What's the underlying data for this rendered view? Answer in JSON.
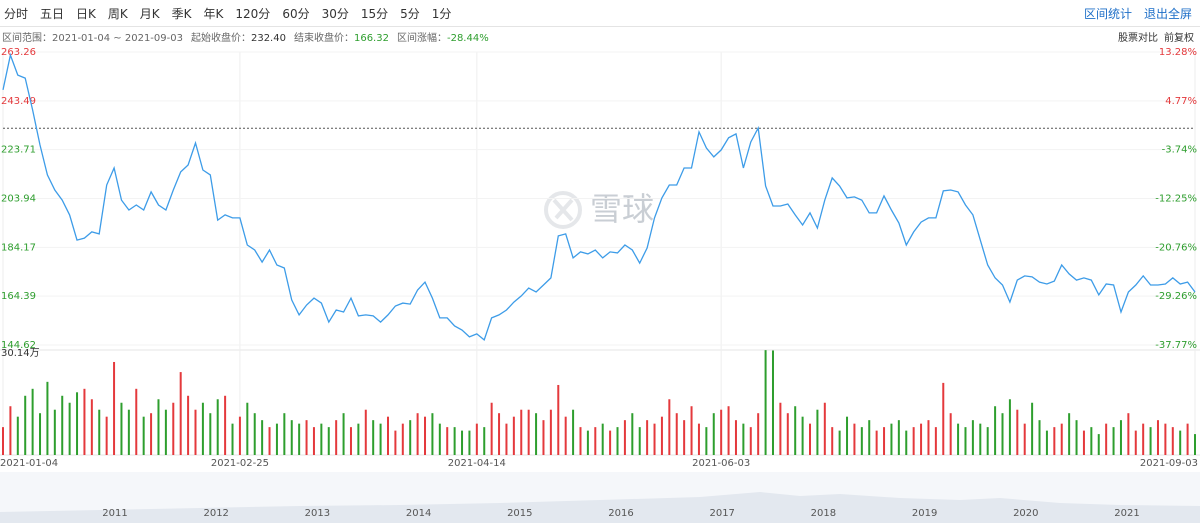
{
  "toolbar": {
    "periods": [
      "分时",
      "五日",
      "日K",
      "周K",
      "月K",
      "季K",
      "年K",
      "120分",
      "60分",
      "30分",
      "15分",
      "5分",
      "1分"
    ],
    "actions": [
      "区间统计",
      "退出全屏"
    ]
  },
  "info": {
    "range_label": "区间范围：",
    "range": "2021-01-04 ~ 2021-09-03",
    "items": [
      {
        "label": "起始收盘价：",
        "value": "232.40",
        "color": "#333333"
      },
      {
        "label": "结束收盘价：",
        "value": "166.32",
        "color": "#2e9e2e"
      },
      {
        "label": "区间涨幅：",
        "value": "-28.44%",
        "color": "#2e9e2e"
      }
    ],
    "right": [
      "股票对比",
      "前复权"
    ]
  },
  "chart_data": {
    "type": "line",
    "categories": [
      "2021-01-04",
      null,
      null,
      null,
      null,
      null,
      null,
      null,
      null,
      null,
      null,
      null,
      null,
      null,
      null,
      null,
      null,
      null,
      null,
      null,
      null,
      null,
      null,
      null,
      null,
      null,
      null,
      null,
      null,
      null,
      null,
      null,
      "2021-02-25",
      null,
      null,
      null,
      null,
      null,
      null,
      null,
      null,
      null,
      null,
      null,
      null,
      null,
      null,
      null,
      null,
      null,
      null,
      null,
      null,
      null,
      null,
      null,
      null,
      null,
      null,
      null,
      null,
      null,
      null,
      null,
      "2021-04-14",
      null,
      null,
      null,
      null,
      null,
      null,
      null,
      null,
      null,
      null,
      null,
      null,
      null,
      null,
      null,
      null,
      null,
      null,
      null,
      null,
      null,
      null,
      null,
      null,
      null,
      null,
      null,
      null,
      null,
      null,
      null,
      null,
      "2021-06-03",
      null,
      null,
      null,
      null,
      null,
      null,
      null,
      null,
      null,
      null,
      null,
      null,
      null,
      null,
      null,
      null,
      null,
      null,
      null,
      null,
      null,
      null,
      null,
      null,
      null,
      null,
      null,
      null,
      null,
      null,
      null,
      null,
      null,
      null,
      null,
      null,
      null,
      null,
      null,
      null,
      null,
      null,
      null,
      null,
      null,
      null,
      null,
      null,
      null,
      null,
      null,
      null,
      null,
      null,
      null,
      null,
      null,
      null,
      null,
      null,
      null,
      null,
      null,
      "2021-09-03"
    ],
    "values": [
      247.9,
      262.0,
      253.9,
      252.7,
      239.8,
      225.6,
      213.5,
      207.4,
      203.3,
      197.3,
      187.1,
      187.9,
      190.4,
      189.6,
      209.4,
      216.3,
      203.3,
      199.3,
      201.3,
      199.3,
      206.6,
      201.3,
      199.3,
      207.4,
      214.7,
      217.5,
      226.4,
      215.5,
      213.5,
      195.2,
      197.3,
      196.1,
      196.1,
      185.1,
      183.1,
      178.2,
      183.1,
      177.0,
      175.8,
      162.9,
      156.8,
      160.8,
      163.6,
      161.6,
      153.9,
      158.8,
      158.0,
      163.6,
      156.4,
      156.8,
      156.4,
      153.9,
      156.8,
      160.4,
      161.6,
      161.2,
      166.9,
      170.1,
      163.6,
      155.6,
      155.6,
      152.3,
      150.7,
      147.9,
      149.1,
      146.7,
      155.6,
      156.8,
      158.8,
      162.0,
      164.5,
      167.7,
      166.1,
      168.9,
      171.8,
      188.8,
      189.6,
      179.9,
      182.3,
      181.5,
      183.1,
      179.9,
      182.3,
      181.9,
      185.1,
      183.1,
      177.8,
      183.9,
      196.1,
      204.2,
      209.4,
      209.4,
      216.3,
      216.3,
      230.9,
      224.4,
      220.8,
      223.6,
      228.5,
      230.1,
      216.3,
      226.8,
      232.5,
      209.0,
      200.9,
      200.9,
      201.7,
      197.3,
      193.2,
      198.1,
      192.0,
      203.3,
      212.3,
      209.0,
      204.2,
      204.6,
      203.3,
      198.1,
      198.1,
      205.0,
      199.3,
      194.0,
      185.1,
      190.4,
      194.4,
      196.1,
      196.1,
      207.0,
      207.4,
      206.6,
      201.3,
      197.3,
      187.1,
      177.0,
      171.8,
      168.9,
      162.0,
      170.9,
      172.6,
      172.2,
      170.1,
      169.3,
      170.5,
      177.0,
      173.4,
      170.9,
      171.8,
      170.9,
      164.9,
      169.3,
      168.9,
      158.0,
      166.1,
      168.9,
      172.6,
      168.9,
      168.9,
      169.3,
      171.8,
      169.3,
      170.1,
      166.1
    ],
    "color": "#3d9ce8",
    "ylim": [
      144.62,
      263.26
    ],
    "yticks": [
      263.26,
      243.49,
      223.71,
      203.94,
      184.17,
      164.39,
      144.62
    ],
    "y2lim": [
      -37.77,
      13.28
    ],
    "y2ticks": [
      {
        "value": 13.28,
        "label": "13.28%"
      },
      {
        "value": 4.77,
        "label": "4.77%"
      },
      {
        "value": -3.74,
        "label": "-3.74%"
      },
      {
        "value": -12.25,
        "label": "-12.25%"
      },
      {
        "value": -20.76,
        "label": "-20.76%"
      },
      {
        "value": -29.26,
        "label": "-29.26%"
      },
      {
        "value": -37.77,
        "label": "-37.77%"
      }
    ],
    "reference": 232.4,
    "up_color": "#e4393c",
    "down_color": "#2e9e2e",
    "volume": {
      "values": [
        8,
        14,
        11,
        17,
        19,
        12,
        21,
        13,
        17,
        15,
        18,
        19,
        16,
        13,
        11,
        26.7,
        15,
        13,
        19,
        11,
        12,
        16,
        13,
        15,
        23.8,
        17,
        13,
        15,
        12,
        16,
        17,
        9,
        11,
        15,
        12,
        10,
        8,
        9,
        12,
        10,
        9,
        10,
        8,
        9,
        8,
        10,
        12,
        8,
        9,
        13,
        10,
        9,
        11,
        7,
        9,
        10,
        12,
        11,
        12,
        9,
        8,
        8,
        7,
        7,
        9,
        8,
        15,
        12,
        9,
        11,
        13,
        13,
        12,
        10,
        13,
        20.1,
        11,
        13,
        8,
        7,
        8,
        9,
        7,
        8,
        10,
        12,
        8,
        10,
        9,
        11,
        16,
        12,
        10,
        14,
        9,
        8,
        12,
        13,
        14,
        10,
        9,
        8,
        12,
        30.1,
        30.0,
        15,
        12,
        14,
        11,
        9,
        13,
        15,
        8,
        7,
        11,
        9,
        8,
        10,
        7,
        8,
        9,
        10,
        7,
        8,
        9,
        10,
        8,
        20.7,
        12,
        9,
        8,
        10,
        9,
        8,
        14,
        12,
        16,
        13,
        9,
        15,
        10,
        7,
        8,
        9,
        12,
        10,
        7,
        8,
        6,
        9,
        8,
        10,
        12,
        7,
        9,
        8,
        10,
        9,
        8,
        7,
        9,
        6
      ],
      "ylim": [
        0,
        30.14
      ],
      "yticks": [
        {
          "value": 30.14,
          "label": "30.14万"
        }
      ]
    },
    "watermark": "雪球",
    "navigator": {
      "years": [
        "2011",
        "2012",
        "2013",
        "2014",
        "2015",
        "2016",
        "2017",
        "2018",
        "2019",
        "2020",
        "2021"
      ]
    }
  }
}
